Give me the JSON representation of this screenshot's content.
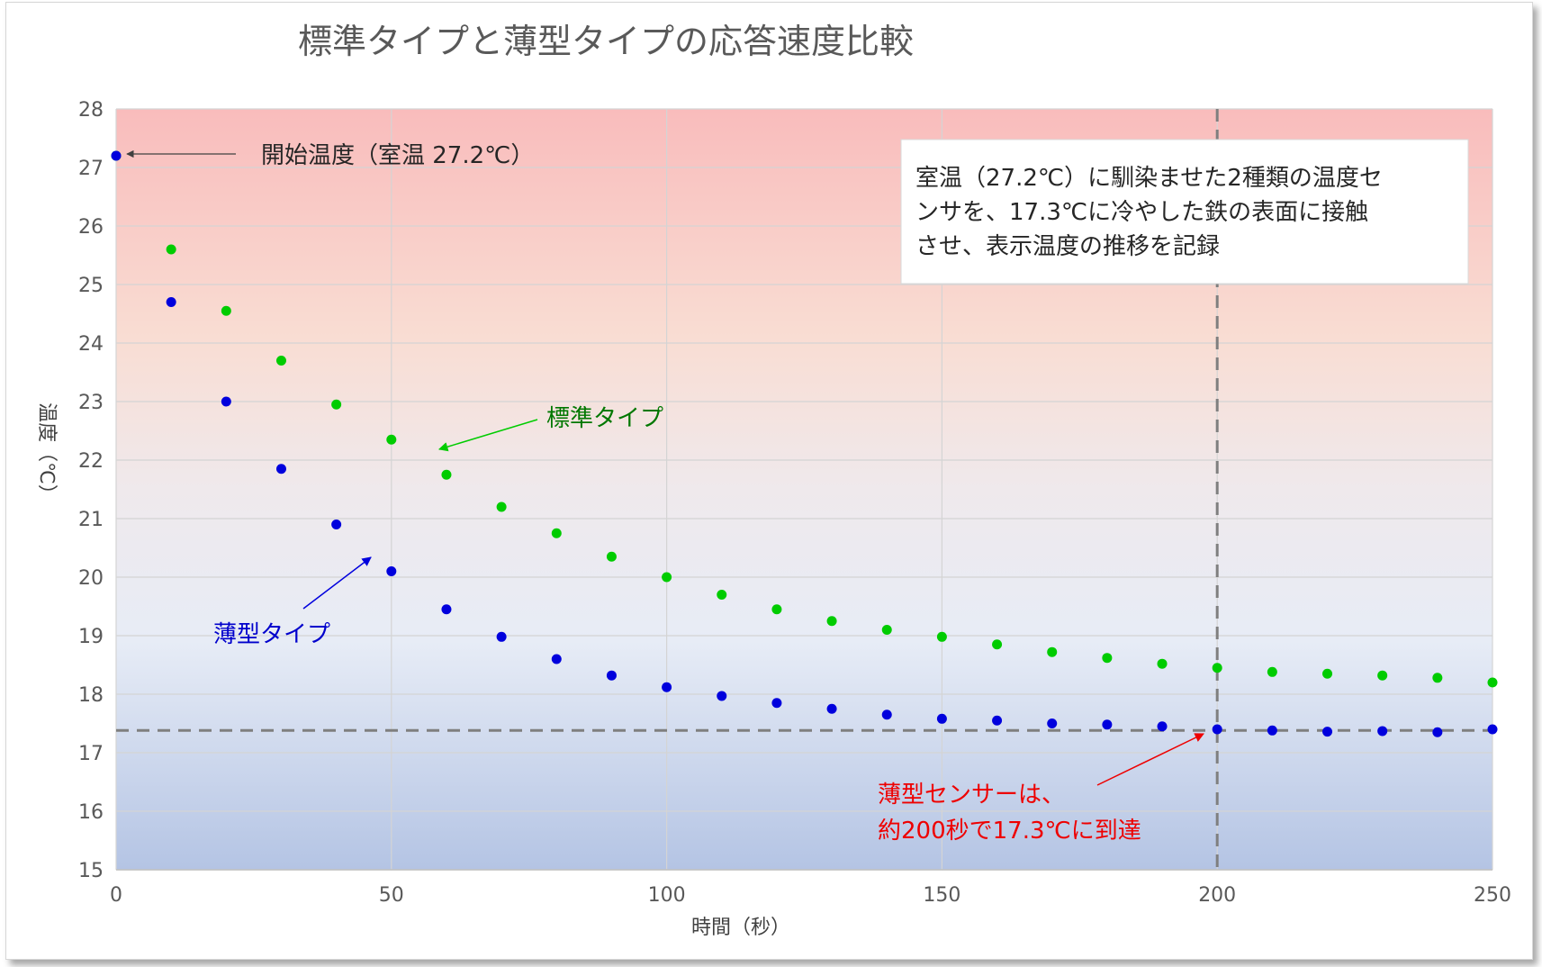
{
  "chart_data": {
    "type": "scatter",
    "title": "標準タイプと薄型タイプの応答速度比較",
    "xlabel": "時間（秒）",
    "ylabel": "温度（℃）",
    "xlim": [
      0,
      250
    ],
    "ylim": [
      15,
      28
    ],
    "x_ticks": [
      "0",
      "50",
      "100",
      "150",
      "200",
      "250"
    ],
    "y_ticks": [
      "15",
      "16",
      "17",
      "18",
      "19",
      "20",
      "21",
      "22",
      "23",
      "24",
      "25",
      "26",
      "27",
      "28"
    ],
    "grid": true,
    "reference_lines": {
      "horizontal_y": 17.38,
      "vertical_x": 200
    },
    "series": [
      {
        "name": "標準タイプ",
        "color": "#00cc00",
        "x": [
          0,
          10,
          20,
          30,
          40,
          50,
          60,
          70,
          80,
          90,
          100,
          110,
          120,
          130,
          140,
          150,
          160,
          170,
          180,
          190,
          200,
          210,
          220,
          230,
          240,
          250
        ],
        "y": [
          27.2,
          25.6,
          24.55,
          23.7,
          22.95,
          22.35,
          21.75,
          21.2,
          20.75,
          20.35,
          20.0,
          19.7,
          19.45,
          19.25,
          19.1,
          18.98,
          18.85,
          18.72,
          18.62,
          18.52,
          18.45,
          18.38,
          18.35,
          18.32,
          18.28,
          18.2
        ]
      },
      {
        "name": "薄型タイプ",
        "color": "#0000dd",
        "x": [
          0,
          10,
          20,
          30,
          40,
          50,
          60,
          70,
          80,
          90,
          100,
          110,
          120,
          130,
          140,
          150,
          160,
          170,
          180,
          190,
          200,
          210,
          220,
          230,
          240,
          250
        ],
        "y": [
          27.2,
          24.7,
          23.0,
          21.85,
          20.9,
          20.1,
          19.45,
          18.98,
          18.6,
          18.32,
          18.12,
          17.97,
          17.85,
          17.75,
          17.65,
          17.58,
          17.55,
          17.5,
          17.48,
          17.45,
          17.4,
          17.38,
          17.36,
          17.37,
          17.35,
          17.4
        ]
      }
    ],
    "annotations": {
      "start": "開始温度（室温 27.2℃）",
      "standard_label": "標準タイプ",
      "thin_label": "薄型タイプ",
      "reach_line1": "薄型センサーは、",
      "reach_line2": "約200秒で17.3℃に到達",
      "info_line1": "室温（27.2℃）に馴染ませた2種類の温度セ",
      "info_line2": "ンサを、17.3℃に冷やした鉄の表面に接触",
      "info_line3": "させ、表示温度の推移を記録"
    },
    "colors": {
      "annotation_red": "#ee0000",
      "standard_label": "#007700",
      "thin_label": "#0000cc",
      "reference_line": "#7f7f7f"
    }
  }
}
